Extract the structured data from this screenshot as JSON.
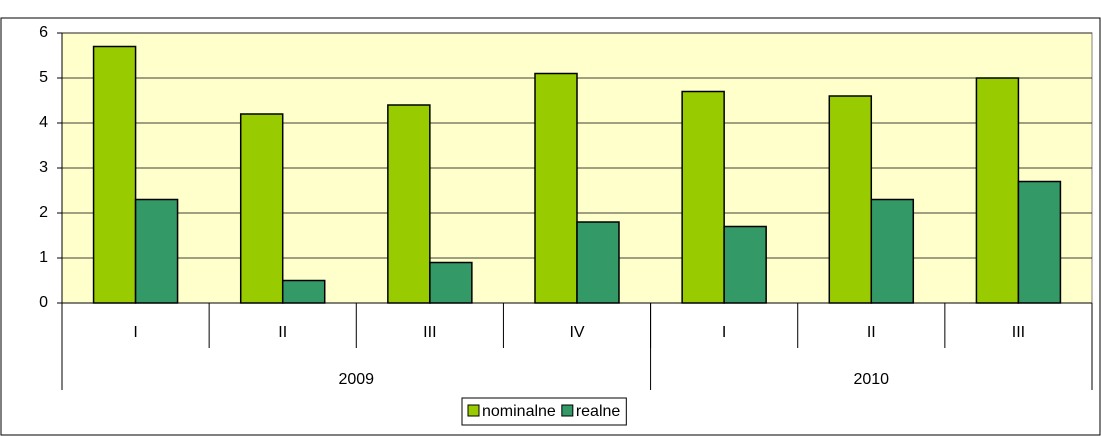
{
  "chart_data": {
    "type": "bar",
    "category_groups": [
      {
        "name": "2009",
        "categories": [
          "I",
          "II",
          "III",
          "IV"
        ]
      },
      {
        "name": "2010",
        "categories": [
          "I",
          "II",
          "III"
        ]
      }
    ],
    "series": [
      {
        "name": "nominalne",
        "color": "#99cc00",
        "values": [
          5.7,
          4.2,
          4.4,
          5.1,
          4.7,
          4.6,
          5.0
        ]
      },
      {
        "name": "realne",
        "color": "#339966",
        "values": [
          2.3,
          0.5,
          0.9,
          1.8,
          1.7,
          2.3,
          2.7
        ]
      }
    ],
    "ylim": [
      0,
      6
    ],
    "yticks": [
      0,
      1,
      2,
      3,
      4,
      5,
      6
    ],
    "grid": true,
    "legend": "bottom"
  }
}
